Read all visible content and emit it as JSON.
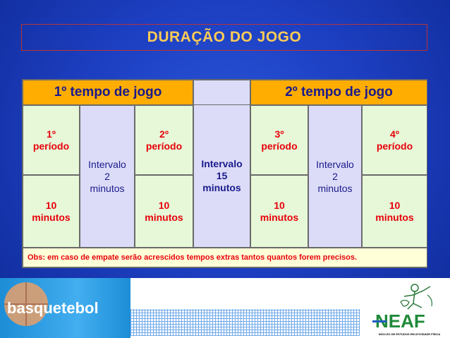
{
  "title": "DURAÇÃO DO JOGO",
  "headers": {
    "first_half": "1º tempo de jogo",
    "second_half": "2º tempo de jogo"
  },
  "periods": [
    {
      "label": "1º\nperíodo",
      "duration": "10\nminutos"
    },
    {
      "label": "2º\nperíodo",
      "duration": "10\nminutos"
    },
    {
      "label": "3º\nperíodo",
      "duration": "10\nminutos"
    },
    {
      "label": "4º\nperíodo",
      "duration": "10\nminutos"
    }
  ],
  "intervals": {
    "short_1": "Intervalo\n2\nminutos",
    "long": "Intervalo\n15\nminutos",
    "short_2": "Intervalo\n2\nminutos"
  },
  "obs": "Obs: em caso de empate serão acrescidos tempos extras tantos quantos forem precisos.",
  "footer": {
    "logo_text": "basquetebol",
    "org_name": "NEAF",
    "org_subtitle": "NÚCLEO DE ESTUDOS EM ATIVIDADE FÍSICA"
  },
  "colors": {
    "background": "#1d3fc2",
    "title": "#ffcc55",
    "header": "#ffad00",
    "period_cell": "#e6f8d8",
    "interval_cell": "#dcdcf8",
    "red_text": "#e8000a",
    "navy_text": "#1a1a8c",
    "obs_bg": "#ffffd8"
  }
}
